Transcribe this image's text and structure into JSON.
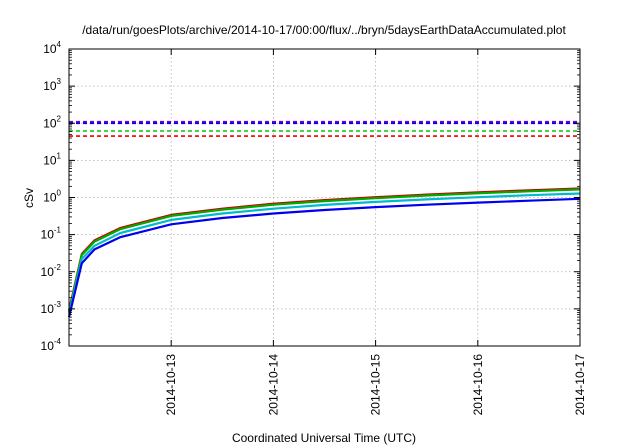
{
  "chart_data": {
    "type": "line",
    "title": "/data/run/goesPlots/archive/2014-10-17/00:00/flux/../bryn/5daysEarthDataAccumulated.plot",
    "xlabel": "Coordinated Universal Time (UTC)",
    "ylabel": "cSv",
    "yscale": "log",
    "ylim": [
      0.0001,
      10000
    ],
    "xlim": [
      "2014-10-12 00:00",
      "2014-10-17 00:00"
    ],
    "y_ticks": [
      {
        "value": 0.0001,
        "base": "10",
        "exp": "-4"
      },
      {
        "value": 0.001,
        "base": "10",
        "exp": "-3"
      },
      {
        "value": 0.01,
        "base": "10",
        "exp": "-2"
      },
      {
        "value": 0.1,
        "base": "10",
        "exp": "-1"
      },
      {
        "value": 1,
        "base": "10",
        "exp": "0"
      },
      {
        "value": 10,
        "base": "10",
        "exp": "1"
      },
      {
        "value": 100,
        "base": "10",
        "exp": "2"
      },
      {
        "value": 1000,
        "base": "10",
        "exp": "3"
      },
      {
        "value": 10000,
        "base": "10",
        "exp": "4"
      }
    ],
    "x_ticks": [
      "2014-10-13",
      "2014-10-14",
      "2014-10-15",
      "2014-10-16",
      "2014-10-17"
    ],
    "grid": true,
    "legend": "none",
    "x": [
      "2014-10-12 00:00",
      "2014-10-12 03:00",
      "2014-10-12 06:00",
      "2014-10-12 12:00",
      "2014-10-13 00:00",
      "2014-10-13 12:00",
      "2014-10-14 00:00",
      "2014-10-14 12:00",
      "2014-10-15 00:00",
      "2014-10-15 12:00",
      "2014-10-16 00:00",
      "2014-10-16 12:00",
      "2014-10-17 00:00"
    ],
    "series": [
      {
        "color": "#cc0000",
        "style": "solid",
        "values": [
          0.0009,
          0.03,
          0.07,
          0.15,
          0.34,
          0.5,
          0.68,
          0.85,
          1.02,
          1.2,
          1.38,
          1.56,
          1.75
        ]
      },
      {
        "color": "#00aa00",
        "style": "solid",
        "values": [
          0.0008,
          0.028,
          0.065,
          0.14,
          0.32,
          0.47,
          0.64,
          0.8,
          0.96,
          1.13,
          1.3,
          1.47,
          1.65
        ]
      },
      {
        "color": "#00bbcc",
        "style": "solid",
        "values": [
          0.0007,
          0.022,
          0.05,
          0.11,
          0.25,
          0.37,
          0.5,
          0.63,
          0.76,
          0.89,
          1.02,
          1.15,
          1.28
        ]
      },
      {
        "color": "#0000ee",
        "style": "solid",
        "values": [
          0.0006,
          0.017,
          0.04,
          0.085,
          0.19,
          0.28,
          0.37,
          0.46,
          0.55,
          0.64,
          0.73,
          0.82,
          0.92
        ]
      },
      {
        "color": "#7700cc",
        "style": "dashed",
        "values": [
          110,
          110,
          110,
          110,
          110,
          110,
          110,
          110,
          110,
          110,
          110,
          110,
          110
        ]
      },
      {
        "color": "#0000ee",
        "style": "dashed",
        "values": [
          100,
          100,
          100,
          100,
          100,
          100,
          100,
          100,
          100,
          100,
          100,
          100,
          100
        ]
      },
      {
        "color": "#00cc00",
        "style": "dashed",
        "values": [
          62,
          62,
          62,
          62,
          62,
          62,
          62,
          62,
          62,
          62,
          62,
          62,
          62
        ]
      },
      {
        "color": "#ee0000",
        "style": "dashed",
        "values": [
          45,
          45,
          45,
          45,
          45,
          45,
          45,
          45,
          45,
          45,
          45,
          45,
          45
        ]
      }
    ]
  }
}
